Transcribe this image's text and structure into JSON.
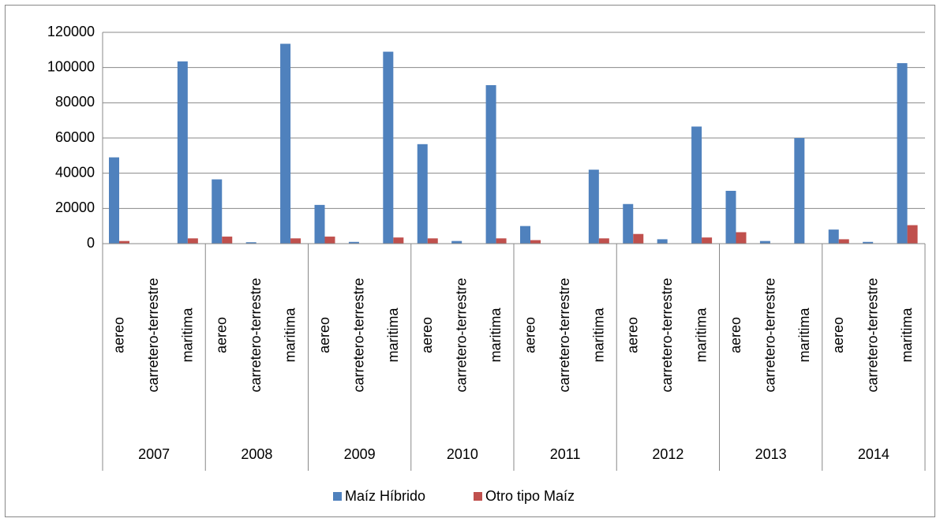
{
  "chart_data": {
    "type": "bar",
    "groups": [
      "2007",
      "2008",
      "2009",
      "2010",
      "2011",
      "2012",
      "2013",
      "2014"
    ],
    "categories": [
      "aereo",
      "carretero-terrestre",
      "maritima",
      "aereo",
      "carretero-terrestre",
      "maritima",
      "aereo",
      "carretero-terrestre",
      "maritima",
      "aereo",
      "carretero-terrestre",
      "maritima",
      "aereo",
      "carretero-terrestre",
      "maritima",
      "aereo",
      "carretero-terrestre",
      "maritima",
      "aereo",
      "carretero-terrestre",
      "maritima",
      "aereo",
      "carretero-terrestre",
      "maritima"
    ],
    "series": [
      {
        "name": "Maíz Híbrido",
        "color": "#4f81bd",
        "values": [
          49000,
          0,
          103500,
          36500,
          800,
          113500,
          22000,
          1000,
          109000,
          56500,
          1500,
          90000,
          10000,
          0,
          42000,
          22500,
          2500,
          66500,
          30000,
          1500,
          60000,
          8000,
          1000,
          102500
        ]
      },
      {
        "name": "Otro tipo Maíz",
        "color": "#c0504d",
        "values": [
          1500,
          0,
          3000,
          4000,
          0,
          3000,
          4000,
          0,
          3500,
          3000,
          0,
          3000,
          2000,
          0,
          3000,
          5500,
          0,
          3500,
          6500,
          0,
          0,
          2500,
          0,
          10500
        ]
      }
    ],
    "ylim": [
      0,
      120000
    ],
    "yticks": [
      0,
      20000,
      40000,
      60000,
      80000,
      100000,
      120000
    ],
    "grid": true,
    "legend": "bottom"
  }
}
